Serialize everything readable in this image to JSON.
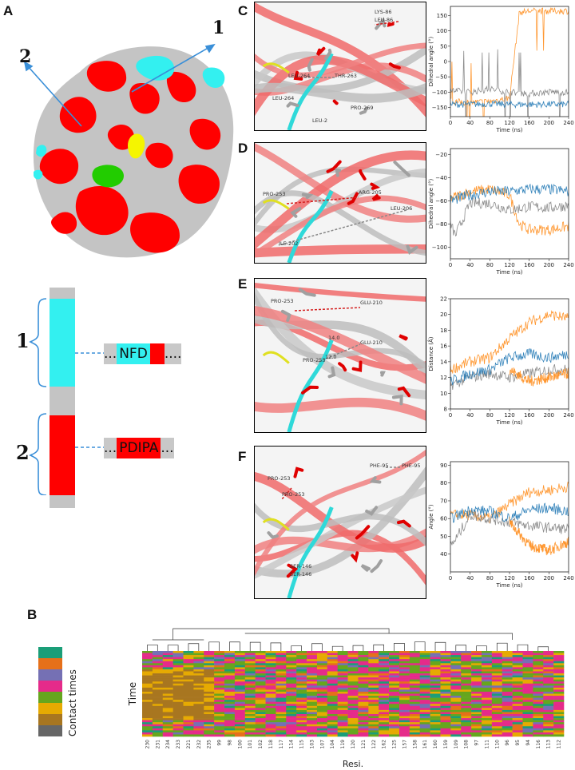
{
  "panel_labels": {
    "A": "A",
    "B": "B",
    "C": "C",
    "D": "D",
    "E": "E",
    "F": "F"
  },
  "panelA": {
    "arrow1_label": "1",
    "arrow2_label": "2",
    "segment1_label": "1",
    "segment2_label": "2",
    "seq1": {
      "dots_left": "...",
      "core": "NFD",
      "dots_right": "...."
    },
    "seq2": {
      "dots_left": "...",
      "core": "PDIPA",
      "dots_right": "..."
    },
    "colors": {
      "cyan": "#33f0f0",
      "red": "#ff0000",
      "grey": "#c4c4c4",
      "yellow": "#f5f500",
      "green": "#22cc00",
      "blue": "#3a8fd8"
    }
  },
  "structure_labels": {
    "C": [
      "LYS-86",
      "LEU-86",
      "LEU-264",
      "THR-263",
      "LEU-264",
      "PRO-269",
      "LEU-2"
    ],
    "D": [
      "PRO-253",
      "ARG-205",
      "LEU-206",
      "ILE-202"
    ],
    "E": [
      "PRO-253",
      "GLU-210",
      "PRO-253",
      "GLU-210",
      "14.0",
      "12.0"
    ],
    "F": [
      "PRO-253",
      "PRO-253",
      "PHE-95",
      "PHE-95",
      "SER-146",
      "SER-146"
    ]
  },
  "series_colors": {
    "orange": "#ff8c1a",
    "blue": "#1f77b4",
    "grey": "#808080"
  },
  "chart_data": [
    {
      "id": "C",
      "type": "line",
      "xlabel": "Time (ns)",
      "ylabel": "Dihedral angle (°)",
      "xlim": [
        0,
        240
      ],
      "ylim": [
        -180,
        180
      ],
      "xticks": [
        0,
        40,
        80,
        120,
        160,
        200,
        240
      ],
      "yticks": [
        -150,
        -100,
        -50,
        0,
        50,
        100,
        150
      ],
      "ytick_labels": [
        "−150",
        "−100",
        "−50",
        "0",
        "50",
        "100",
        "150"
      ],
      "series": [
        {
          "color": "orange",
          "x": [
            0,
            40,
            80,
            120,
            140,
            160,
            200,
            240
          ],
          "y": [
            -130,
            -135,
            -130,
            -120,
            160,
            165,
            165,
            165
          ]
        },
        {
          "color": "grey",
          "x": [
            0,
            40,
            80,
            120,
            160,
            200,
            240
          ],
          "y": [
            -95,
            -100,
            -90,
            -100,
            -105,
            -100,
            -100
          ]
        },
        {
          "color": "blue",
          "x": [
            0,
            40,
            80,
            120,
            160,
            200,
            240
          ],
          "y": [
            -140,
            -140,
            -138,
            -140,
            -140,
            -140,
            -140
          ]
        }
      ]
    },
    {
      "id": "D",
      "type": "line",
      "xlabel": "Time (ns)",
      "ylabel": "Dihedral angle (°)",
      "xlim": [
        0,
        240
      ],
      "ylim": [
        -110,
        -15
      ],
      "xticks": [
        0,
        40,
        80,
        120,
        160,
        200,
        240
      ],
      "yticks": [
        -100,
        -80,
        -60,
        -40,
        -20
      ],
      "ytick_labels": [
        "−100",
        "−80",
        "−60",
        "−40",
        "−20"
      ],
      "series": [
        {
          "color": "orange",
          "x": [
            0,
            40,
            80,
            120,
            140,
            160,
            200,
            240
          ],
          "y": [
            -58,
            -52,
            -50,
            -55,
            -80,
            -85,
            -85,
            -82
          ]
        },
        {
          "color": "grey",
          "x": [
            0,
            10,
            40,
            80,
            120,
            160,
            200,
            240
          ],
          "y": [
            -80,
            -90,
            -62,
            -62,
            -68,
            -65,
            -66,
            -64
          ]
        },
        {
          "color": "blue",
          "x": [
            0,
            40,
            80,
            120,
            160,
            200,
            240
          ],
          "y": [
            -60,
            -55,
            -52,
            -52,
            -50,
            -50,
            -52
          ]
        }
      ]
    },
    {
      "id": "E",
      "type": "line",
      "xlabel": "Time (ns)",
      "ylabel": "Distance (Å)",
      "xlim": [
        0,
        240
      ],
      "ylim": [
        8,
        22
      ],
      "xticks": [
        0,
        40,
        80,
        120,
        160,
        200,
        240
      ],
      "yticks": [
        8,
        10,
        12,
        14,
        16,
        18,
        20,
        22
      ],
      "ytick_labels": [
        "8",
        "10",
        "12",
        "14",
        "16",
        "18",
        "20",
        "22"
      ],
      "series": [
        {
          "color": "orange",
          "x": [
            0,
            40,
            80,
            120,
            160,
            200,
            240
          ],
          "y": [
            13,
            14,
            14.5,
            17,
            19,
            20,
            19.5
          ]
        },
        {
          "color": "grey",
          "x": [
            0,
            40,
            80,
            120,
            160,
            200,
            240
          ],
          "y": [
            11,
            12,
            12.5,
            12,
            12.5,
            13,
            13
          ]
        },
        {
          "color": "blue",
          "x": [
            0,
            40,
            80,
            120,
            160,
            200,
            240
          ],
          "y": [
            11.5,
            12.5,
            13,
            14.5,
            15,
            14.5,
            15
          ]
        },
        {
          "color": "orange",
          "x": [
            120,
            160,
            200,
            240
          ],
          "y": [
            13,
            11.5,
            12,
            12.5
          ]
        }
      ]
    },
    {
      "id": "F",
      "type": "line",
      "xlabel": "Time (ns)",
      "ylabel": "Angle (°)",
      "xlim": [
        0,
        240
      ],
      "ylim": [
        30,
        92
      ],
      "xticks": [
        0,
        40,
        80,
        120,
        160,
        200,
        240
      ],
      "yticks": [
        40,
        50,
        60,
        70,
        80,
        90
      ],
      "ytick_labels": [
        "40",
        "50",
        "60",
        "70",
        "80",
        "90"
      ],
      "series": [
        {
          "color": "orange",
          "x": [
            0,
            40,
            80,
            120,
            160,
            200,
            240
          ],
          "y": [
            62,
            62,
            60,
            68,
            75,
            76,
            78
          ]
        },
        {
          "color": "grey",
          "x": [
            0,
            10,
            40,
            80,
            120,
            160,
            200,
            240
          ],
          "y": [
            45,
            48,
            62,
            60,
            58,
            56,
            55,
            54
          ]
        },
        {
          "color": "blue",
          "x": [
            0,
            40,
            80,
            120,
            160,
            200,
            240
          ],
          "y": [
            60,
            65,
            64,
            60,
            65,
            66,
            64
          ]
        },
        {
          "color": "orange",
          "x": [
            120,
            160,
            200,
            240
          ],
          "y": [
            58,
            45,
            42,
            47
          ]
        }
      ]
    },
    {
      "id": "B",
      "type": "heatmap",
      "xlabel": "Resi.",
      "ylabel": "Time",
      "legend_title": "Contact times",
      "legend_colors": [
        "#1a9e78",
        "#e6701a",
        "#7570b4",
        "#e52b8a",
        "#66a61e",
        "#e6aa02",
        "#a87620",
        "#666666"
      ],
      "categories": [
        "230",
        "231",
        "234",
        "233",
        "221",
        "232",
        "235",
        "99",
        "98",
        "100",
        "101",
        "102",
        "118",
        "117",
        "114",
        "115",
        "103",
        "107",
        "104",
        "119",
        "120",
        "121",
        "122",
        "162",
        "125",
        "157",
        "158",
        "161",
        "160",
        "159",
        "109",
        "108",
        "97",
        "111",
        "110",
        "96",
        "95",
        "94",
        "116",
        "113",
        "112"
      ]
    }
  ]
}
